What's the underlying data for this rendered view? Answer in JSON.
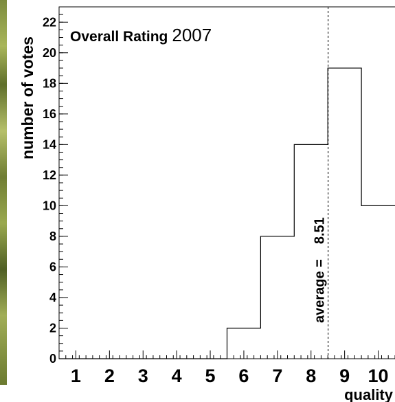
{
  "chart_data": {
    "type": "bar",
    "title_bold": "Overall Rating",
    "title_plain": "2007",
    "xlabel": "quality",
    "ylabel": "number of votes",
    "x_ticks": [
      "1",
      "2",
      "3",
      "4",
      "5",
      "6",
      "7",
      "8",
      "9",
      "10"
    ],
    "y_ticks": [
      "0",
      "2",
      "4",
      "6",
      "8",
      "10",
      "12",
      "14",
      "16",
      "18",
      "20",
      "22"
    ],
    "xlim": [
      0.5,
      10.5
    ],
    "ylim": [
      0,
      23
    ],
    "series": [
      {
        "bins": [
          {
            "x": 1,
            "value": 0
          },
          {
            "x": 2,
            "value": 0
          },
          {
            "x": 3,
            "value": 0
          },
          {
            "x": 4,
            "value": 0
          },
          {
            "x": 5,
            "value": 0
          },
          {
            "x": 6,
            "value": 2
          },
          {
            "x": 7,
            "value": 8
          },
          {
            "x": 8,
            "value": 14
          },
          {
            "x": 9,
            "value": 19
          },
          {
            "x": 10,
            "value": 10
          }
        ]
      }
    ],
    "average_label": "average =",
    "average_value": "8.51",
    "average_x": 8.51
  }
}
